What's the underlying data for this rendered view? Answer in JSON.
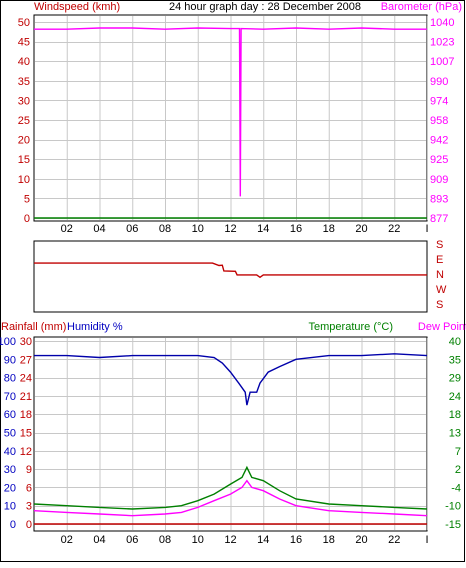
{
  "header": {
    "left_title": "Windspeed (kmh)",
    "center_title": "24 hour graph day : 28 December 2008",
    "right_title": "Barometer (hPa)"
  },
  "mid_header": {
    "rainfall": "Rainfall (mm)",
    "humidity": "Humidity %",
    "temperature": "Temperature (°C)",
    "dewpoint": "Dew Point"
  },
  "colors": {
    "grid_bg": "#ffffff",
    "grid": "#c8c8c8",
    "wind": "#008000",
    "barometer": "#ff00ff",
    "direction": "#c00000",
    "humidity": "#0000aa",
    "temperature": "#008000",
    "dewpoint": "#ff00ff",
    "rainfall": "#c00000",
    "red_text": "#c00000",
    "green_text": "#008000",
    "magenta_text": "#ff00ff",
    "blue_text": "#0000c0"
  },
  "x_ticks": [
    "02",
    "04",
    "06",
    "08",
    "10",
    "12",
    "14",
    "16",
    "18",
    "20",
    "22",
    "I"
  ],
  "chart_data": [
    {
      "type": "line",
      "title": "24 hour graph day : 28 December 2008",
      "x_range": [
        0,
        24
      ],
      "left_axis": {
        "label": "Windspeed (kmh)",
        "ticks": [
          "0",
          "5",
          "10",
          "15",
          "20",
          "25",
          "30",
          "35",
          "40",
          "45",
          "50"
        ],
        "range": [
          0,
          50
        ]
      },
      "right_axis": {
        "label": "Barometer (hPa)",
        "ticks": [
          "877",
          "893",
          "909",
          "925",
          "942",
          "958",
          "974",
          "990",
          "1007",
          "1023",
          "1040"
        ],
        "range": [
          877,
          1040
        ]
      },
      "series": [
        {
          "name": "Windspeed (kmh)",
          "axis": "left",
          "points": [
            [
              0,
              0
            ],
            [
              24,
              0
            ]
          ]
        },
        {
          "name": "Barometer (hPa)",
          "axis": "right",
          "points": [
            [
              0,
              1034
            ],
            [
              2,
              1034
            ],
            [
              4,
              1035
            ],
            [
              6,
              1035
            ],
            [
              8,
              1034
            ],
            [
              10,
              1035
            ],
            [
              12,
              1034.5
            ],
            [
              12.55,
              1034.5
            ],
            [
              12.6,
              895
            ],
            [
              12.65,
              1034.5
            ],
            [
              14,
              1034
            ],
            [
              16,
              1035
            ],
            [
              18,
              1034
            ],
            [
              20,
              1035
            ],
            [
              22,
              1034
            ],
            [
              24,
              1034
            ]
          ]
        }
      ]
    },
    {
      "type": "line",
      "title": "",
      "x_range": [
        0,
        24
      ],
      "left_axis": {
        "label": "",
        "ticks": [],
        "range": [
          0,
          8
        ]
      },
      "right_axis": {
        "label": "",
        "ticks": [
          "S",
          "E",
          "N",
          "W",
          "S"
        ],
        "range": [
          0,
          4
        ]
      },
      "series": [
        {
          "name": "",
          "axis": "right",
          "points": [
            [
              0,
              2.85
            ],
            [
              10.9,
              2.85
            ],
            [
              11.3,
              2.7
            ],
            [
              11.5,
              2.72
            ],
            [
              11.6,
              2.35
            ],
            [
              12.3,
              2.33
            ],
            [
              12.4,
              2.1
            ],
            [
              13.6,
              2.1
            ],
            [
              13.8,
              1.95
            ],
            [
              14.0,
              2.1
            ],
            [
              24,
              2.1
            ]
          ]
        }
      ]
    },
    {
      "type": "line",
      "title": "",
      "x_range": [
        0,
        24
      ],
      "left_axis_outer": {
        "label": "Humidity %",
        "ticks": [
          "0",
          "10",
          "20",
          "30",
          "40",
          "50",
          "60",
          "70",
          "80",
          "90",
          "100"
        ],
        "range": [
          0,
          100
        ]
      },
      "left_axis_inner": {
        "label": "Rainfall (mm)",
        "ticks": [
          "0",
          "3",
          "6",
          "9",
          "12",
          "15",
          "18",
          "21",
          "24",
          "27",
          "30"
        ],
        "range": [
          0,
          30
        ]
      },
      "right_axis_outer": {
        "label": "Temperature (°C)",
        "ticks": [
          "-15",
          "-10",
          "-4",
          "2",
          "7",
          "13",
          "18",
          "24",
          "29",
          "35",
          "40"
        ],
        "range": [
          -15,
          40
        ]
      },
      "right_axis_inner": {
        "label": "Dew Point",
        "ticks": [],
        "range": [
          -15,
          40
        ]
      },
      "series": [
        {
          "name": "Humidity %",
          "axis": "humidity",
          "points": [
            [
              0,
              92
            ],
            [
              2,
              92
            ],
            [
              4,
              91
            ],
            [
              6,
              92
            ],
            [
              8,
              92
            ],
            [
              10,
              92
            ],
            [
              11,
              91
            ],
            [
              11.5,
              88
            ],
            [
              12,
              83
            ],
            [
              12.5,
              77
            ],
            [
              12.9,
              72
            ],
            [
              13.0,
              65
            ],
            [
              13.2,
              72
            ],
            [
              13.6,
              72
            ],
            [
              13.8,
              77
            ],
            [
              14.3,
              83
            ],
            [
              15,
              86
            ],
            [
              16,
              90
            ],
            [
              18,
              92
            ],
            [
              20,
              92
            ],
            [
              22,
              93
            ],
            [
              24,
              92
            ]
          ]
        },
        {
          "name": "Temperature (°C)",
          "axis": "temperature",
          "points": [
            [
              0,
              -9
            ],
            [
              2,
              -9.5
            ],
            [
              4,
              -10
            ],
            [
              6,
              -10.5
            ],
            [
              8,
              -10
            ],
            [
              9,
              -9.5
            ],
            [
              10,
              -8
            ],
            [
              11,
              -6
            ],
            [
              12,
              -3
            ],
            [
              12.7,
              -1
            ],
            [
              13.0,
              2
            ],
            [
              13.3,
              -1
            ],
            [
              14,
              -2
            ],
            [
              15,
              -5
            ],
            [
              16,
              -7.5
            ],
            [
              18,
              -9
            ],
            [
              20,
              -9.5
            ],
            [
              22,
              -10
            ],
            [
              24,
              -10.5
            ]
          ]
        },
        {
          "name": "Dew Point",
          "axis": "temperature",
          "points": [
            [
              0,
              -11
            ],
            [
              2,
              -11.5
            ],
            [
              4,
              -12
            ],
            [
              6,
              -12.5
            ],
            [
              8,
              -12
            ],
            [
              9,
              -11.5
            ],
            [
              10,
              -10
            ],
            [
              11,
              -8
            ],
            [
              12,
              -6
            ],
            [
              12.7,
              -4
            ],
            [
              13.0,
              -2
            ],
            [
              13.3,
              -4
            ],
            [
              14,
              -5
            ],
            [
              15,
              -7.5
            ],
            [
              16,
              -9.5
            ],
            [
              18,
              -11
            ],
            [
              20,
              -11.5
            ],
            [
              22,
              -12
            ],
            [
              24,
              -12.5
            ]
          ]
        },
        {
          "name": "Rainfall (mm)",
          "axis": "rainfall",
          "points": [
            [
              0,
              0
            ],
            [
              24,
              0
            ]
          ]
        }
      ]
    }
  ]
}
